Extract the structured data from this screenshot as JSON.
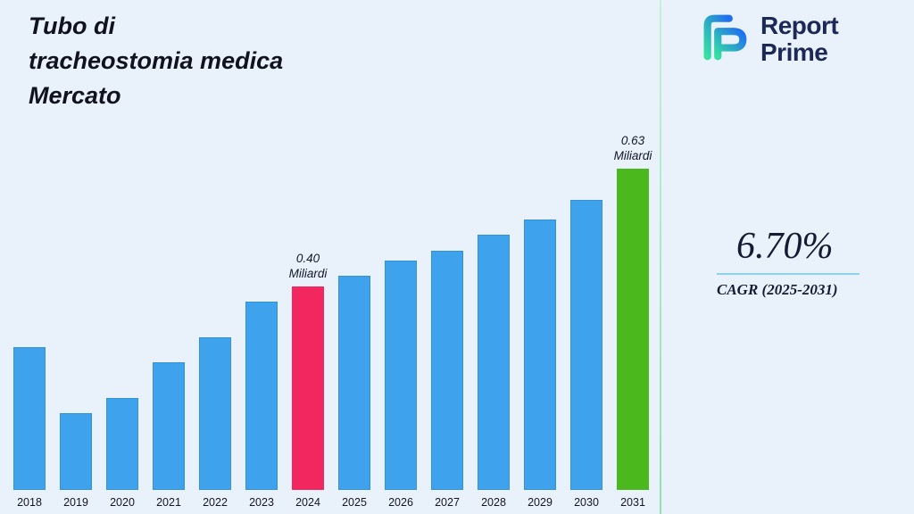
{
  "title": {
    "lines": [
      "Tubo di",
      "tracheostomia medica",
      "Mercato"
    ]
  },
  "logo": {
    "line1": "Report",
    "line2": "Prime"
  },
  "stats": {
    "cagr_value": "6.70%",
    "cagr_label": "CAGR (2025-2031)"
  },
  "colors": {
    "background": "#e9f1fa",
    "bar_default": "#3FA2EC",
    "bar_2024": "#F2275F",
    "bar_2031": "#4BB91D",
    "separator": "#8fe0b4",
    "logo_navy": "#1c2957",
    "cagr_rule": "#8ed2f2"
  },
  "chart_data": {
    "type": "bar",
    "title": "Tubo di tracheostomia medica Mercato",
    "xlabel": "",
    "ylabel": "Miliardi",
    "ylim": [
      0,
      0.7
    ],
    "grid": false,
    "legend": "none",
    "categories": [
      "2018",
      "2019",
      "2020",
      "2021",
      "2022",
      "2023",
      "2024",
      "2025",
      "2026",
      "2027",
      "2028",
      "2029",
      "2030",
      "2031"
    ],
    "values": [
      0.28,
      0.15,
      0.18,
      0.25,
      0.3,
      0.37,
      0.4,
      0.42,
      0.45,
      0.47,
      0.5,
      0.53,
      0.57,
      0.63
    ],
    "unit": "Miliardi",
    "bar_colors": {
      "default": "#3FA2EC",
      "2024": "#F2275F",
      "2031": "#4BB91D"
    },
    "annotations": [
      {
        "category": "2024",
        "lines": [
          "0.40",
          "Miliardi"
        ]
      },
      {
        "category": "2031",
        "lines": [
          "0.63",
          "Miliardi"
        ]
      }
    ]
  }
}
